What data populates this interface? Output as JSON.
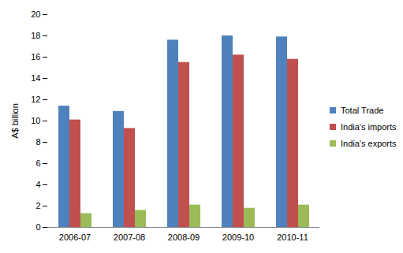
{
  "chart_data": {
    "type": "bar",
    "y_label": "A$ billion",
    "categories": [
      "2006-07",
      "2007-08",
      "2008-09",
      "2009-10",
      "2010-11"
    ],
    "series": [
      {
        "name": "Total Trade",
        "color": "#4F81BD",
        "values": [
          11.4,
          10.9,
          17.6,
          18.0,
          17.9
        ]
      },
      {
        "name": "India's imports",
        "color": "#C0504D",
        "values": [
          10.1,
          9.3,
          15.5,
          16.2,
          15.8
        ]
      },
      {
        "name": "India's exports",
        "color": "#9BBB59",
        "values": [
          1.3,
          1.6,
          2.1,
          1.8,
          2.1
        ]
      }
    ],
    "ylim": [
      0,
      20
    ],
    "yticks": [
      0,
      2,
      4,
      6,
      8,
      10,
      12,
      14,
      16,
      18,
      20
    ],
    "grid": false,
    "legend": "right"
  }
}
